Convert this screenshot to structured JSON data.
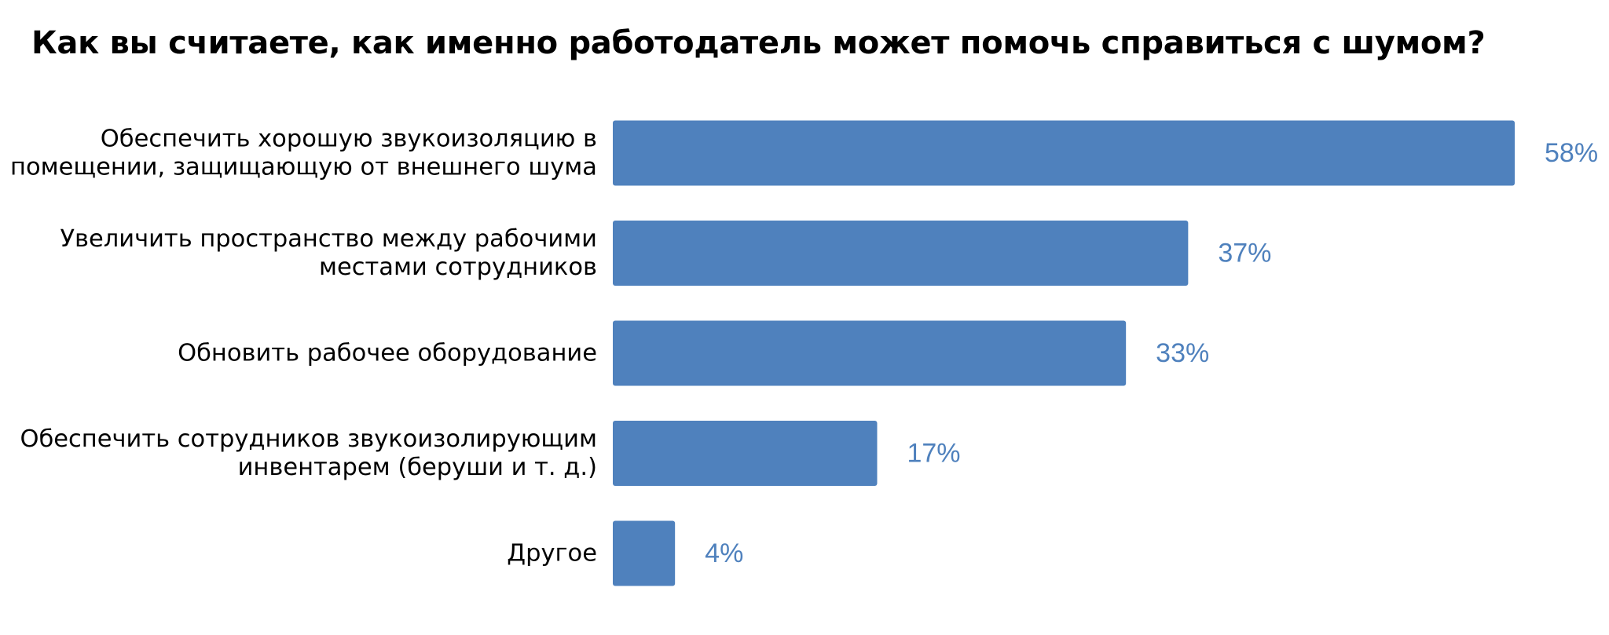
{
  "chart_data": {
    "type": "bar",
    "orientation": "horizontal",
    "title": "Как вы считаете, как именно работодатель может помочь справиться с шумом?",
    "xlabel": "",
    "ylabel": "",
    "xlim": [
      0,
      58
    ],
    "grid": false,
    "legend": "none",
    "categories": [
      [
        "Обеспечить хорошую звукоизоляцию в",
        "помещении, защищающую от внешнего шума"
      ],
      [
        "Увеличить пространство между рабочими",
        "местами сотрудников"
      ],
      [
        "Обновить рабочее оборудование"
      ],
      [
        "Обеспечить сотрудников звукоизолирующим",
        "инвентарем (беруши и т. д.)"
      ],
      [
        "Другое"
      ]
    ],
    "values": [
      58,
      37,
      33,
      17,
      4
    ],
    "value_labels": [
      "58%",
      "37%",
      "33%",
      "17%",
      "4%"
    ],
    "colors": {
      "bar": "#4f81bd",
      "value_label": "#4f81bd"
    }
  }
}
